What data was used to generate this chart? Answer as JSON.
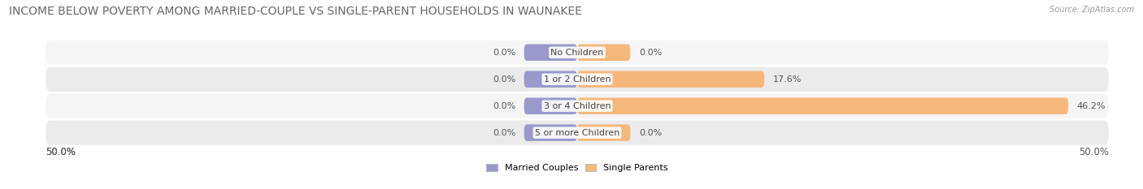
{
  "title": "INCOME BELOW POVERTY AMONG MARRIED-COUPLE VS SINGLE-PARENT HOUSEHOLDS IN WAUNAKEE",
  "source": "Source: ZipAtlas.com",
  "categories": [
    "No Children",
    "1 or 2 Children",
    "3 or 4 Children",
    "5 or more Children"
  ],
  "married_values": [
    0.0,
    0.0,
    0.0,
    0.0
  ],
  "single_values": [
    0.0,
    17.6,
    46.2,
    0.0
  ],
  "married_color": "#9999cc",
  "single_color": "#f5b87a",
  "row_bg_colors": [
    "#f5f5f5",
    "#ebebeb",
    "#f5f5f5",
    "#ebebeb"
  ],
  "axis_max": 50.0,
  "min_bar_width": 5.0,
  "legend_labels": [
    "Married Couples",
    "Single Parents"
  ],
  "title_fontsize": 10,
  "label_fontsize": 8,
  "tick_fontsize": 8.5,
  "value_label_fontsize": 8
}
